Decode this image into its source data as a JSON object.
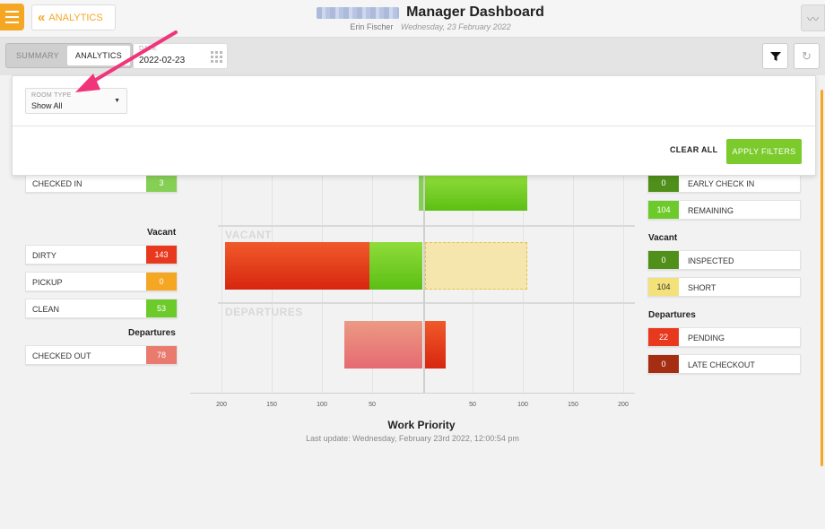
{
  "header": {
    "back_label": "ANALYTICS",
    "title": "Manager Dashboard",
    "user": "Erin Fischer",
    "date": "Wednesday, 23 February 2022"
  },
  "toolbar": {
    "tabs": [
      "SUMMARY",
      "ANALYTICS"
    ],
    "active_tab": "ANALYTICS",
    "date_label": "DATE",
    "date_value": "2022-02-23"
  },
  "filters": {
    "room_type_label": "ROOM TYPE",
    "room_type_value": "Show All",
    "clear_label": "CLEAR ALL",
    "apply_label": "APPLY FILTERS"
  },
  "left_panel": {
    "arrivals": [
      {
        "label": "CHECKED IN",
        "value": "3",
        "color": "#86cf55"
      }
    ],
    "vacant_title": "Vacant",
    "vacant": [
      {
        "label": "DIRTY",
        "value": "143",
        "color": "#e8391f"
      },
      {
        "label": "PICKUP",
        "value": "0",
        "color": "#f5a623"
      },
      {
        "label": "CLEAN",
        "value": "53",
        "color": "#6ccb2a"
      }
    ],
    "departures_title": "Departures",
    "departures": [
      {
        "label": "CHECKED OUT",
        "value": "78",
        "color": "#e87a6e"
      }
    ]
  },
  "right_panel": {
    "arrivals": [
      {
        "label": "EARLY CHECK IN",
        "value": "0",
        "color": "#4f8f1a"
      },
      {
        "label": "REMAINING",
        "value": "104",
        "color": "#6ccb2a"
      }
    ],
    "vacant_title": "Vacant",
    "vacant": [
      {
        "label": "INSPECTED",
        "value": "0",
        "color": "#4f8f1a"
      },
      {
        "label": "SHORT",
        "value": "104",
        "color": "#f3e27a"
      }
    ],
    "departures_title": "Departures",
    "departures": [
      {
        "label": "PENDING",
        "value": "22",
        "color": "#e8391f"
      },
      {
        "label": "LATE CHECKOUT",
        "value": "0",
        "color": "#a52d12"
      }
    ]
  },
  "chart_data": {
    "type": "bar",
    "title": "Work Priority",
    "last_update": "Last update: Wednesday, February 23rd 2022, 12:00:54 pm",
    "band_labels": [
      "VACANT",
      "DEPARTURES"
    ],
    "x_ticks_left": [
      "200",
      "150",
      "100",
      "50"
    ],
    "x_ticks_right": [
      "50",
      "100",
      "150",
      "200"
    ],
    "xlim": [
      -200,
      200
    ]
  }
}
